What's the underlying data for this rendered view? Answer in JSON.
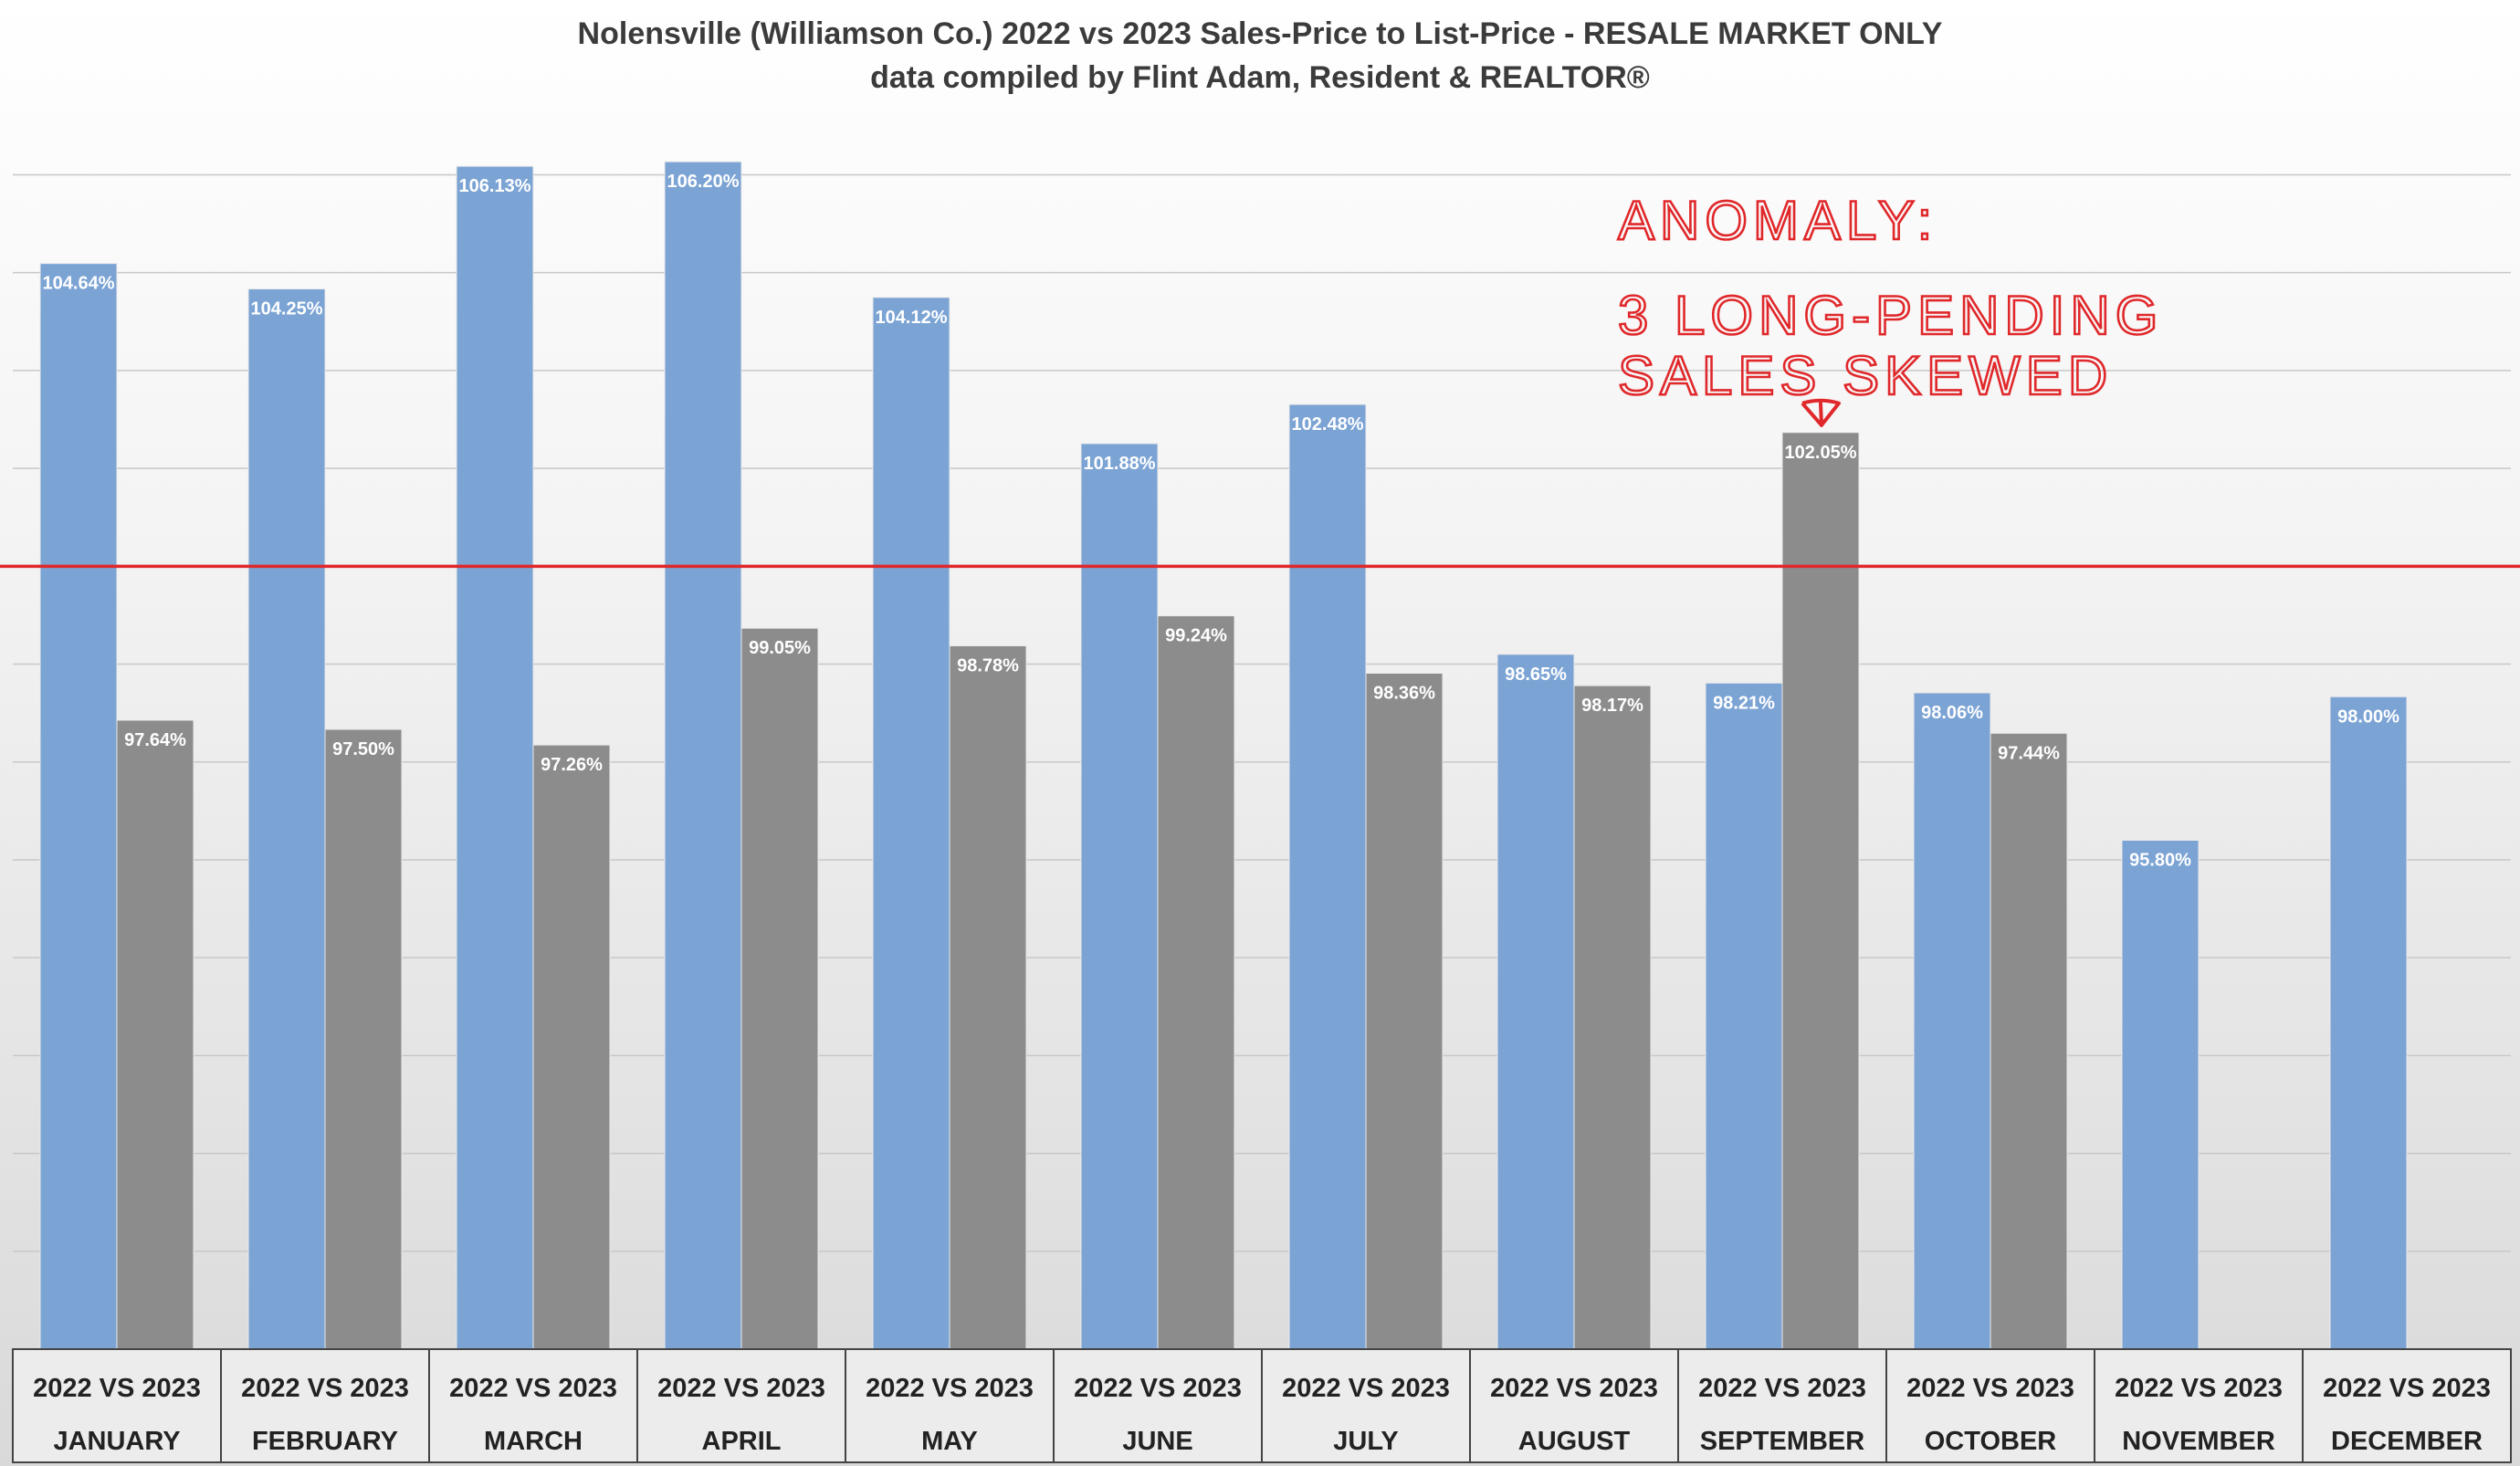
{
  "chart_data": {
    "type": "bar",
    "title": "Nolensville (Williamson Co.) 2022 vs 2023 Sales-Price to List-Price - RESALE MARKET ONLY",
    "subtitle": "data compiled by Flint Adam, Resident & REALTOR®",
    "category_prefix": "2022 VS 2023",
    "categories": [
      "JANUARY",
      "FEBRUARY",
      "MARCH",
      "APRIL",
      "MAY",
      "JUNE",
      "JULY",
      "AUGUST",
      "SEPTEMBER",
      "OCTOBER",
      "NOVEMBER",
      "DECEMBER"
    ],
    "series": [
      {
        "color": "#7ba3d4",
        "values": [
          104.64,
          104.25,
          106.13,
          106.2,
          104.12,
          101.88,
          102.48,
          98.65,
          98.21,
          98.06,
          95.8,
          98.0
        ],
        "labels": [
          "104.64%",
          "104.25%",
          "106.13%",
          "106.20%",
          "104.12%",
          "101.88%",
          "102.48%",
          "98.65%",
          "98.21%",
          "98.06%",
          "95.80%",
          "98.00%"
        ]
      },
      {
        "color": "#8c8c8c",
        "values": [
          97.64,
          97.5,
          97.26,
          99.05,
          98.78,
          99.24,
          98.36,
          98.17,
          102.05,
          97.44,
          null,
          null
        ],
        "labels": [
          "97.64%",
          "97.50%",
          "97.26%",
          "99.05%",
          "98.78%",
          "99.24%",
          "98.36%",
          "98.17%",
          "102.05%",
          "97.44%",
          "",
          ""
        ]
      }
    ],
    "ylim": [
      88,
      107
    ],
    "reference_line": {
      "value": 100,
      "color": "#e0282b"
    },
    "grid": true,
    "legend": "none",
    "annotation": {
      "lines": [
        "ANOMALY:",
        "3 LONG-PENDING",
        "SALES SKEWED"
      ],
      "color": "#e0282b",
      "target_category": "SEPTEMBER",
      "target_series": 1
    }
  }
}
